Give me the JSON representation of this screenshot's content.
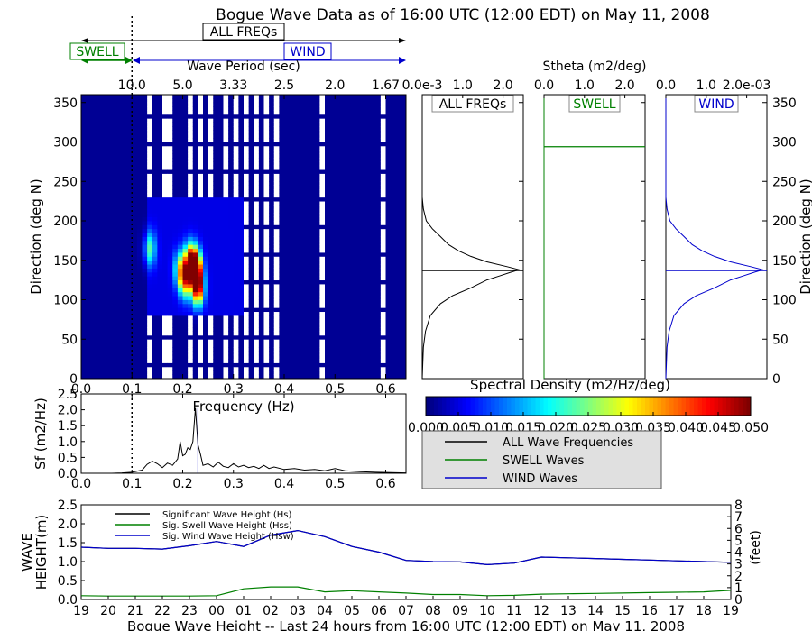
{
  "figure_title": "Bogue Wave Data as of 16:00 UTC (12:00 EDT) on May 11, 2008",
  "bands": {
    "all": "ALL FREQs",
    "swell": "SWELL",
    "wind": "WIND"
  },
  "colors": {
    "all": "#000000",
    "swell": "#008000",
    "wind": "#0000cc",
    "cutoff": "#000000"
  },
  "chart_data": [
    {
      "type": "heatmap",
      "title": "",
      "xlabel": "Frequency (Hz)",
      "x2label": "Wave Period (sec)",
      "ylabel": "Direction (deg N)",
      "xlim": [
        0.0,
        0.64
      ],
      "ylim": [
        0,
        360
      ],
      "x_ticks": [
        "0.0",
        "0.1",
        "0.2",
        "0.3",
        "0.4",
        "0.5",
        "0.6"
      ],
      "x2_ticks": [
        "10.0",
        "5.0",
        "3.33",
        "2.5",
        "2.0",
        "1.67"
      ],
      "x2_tick_freqs": [
        0.1,
        0.2,
        0.3,
        0.4,
        0.5,
        0.6
      ],
      "y_ticks": [
        0,
        50,
        100,
        150,
        200,
        250,
        300,
        350
      ],
      "swell_wind_cutoff_hz": 0.1,
      "background_level": 0.001,
      "gap_columns_hz": [
        0.135,
        0.165,
        0.175,
        0.2,
        0.215,
        0.24,
        0.255,
        0.27,
        0.285,
        0.305,
        0.325,
        0.345,
        0.365,
        0.385,
        0.44,
        0.475,
        0.595
      ],
      "energy_peaks": [
        {
          "f": 0.135,
          "d": 165,
          "level": 0.018
        },
        {
          "f": 0.195,
          "d": 140,
          "level": 0.02
        },
        {
          "f": 0.205,
          "d": 125,
          "level": 0.03
        },
        {
          "f": 0.225,
          "d": 140,
          "level": 0.05
        },
        {
          "f": 0.23,
          "d": 115,
          "level": 0.04
        },
        {
          "f": 0.215,
          "d": 150,
          "level": 0.035
        }
      ]
    },
    {
      "type": "line",
      "title": "",
      "xlabel": "Frequency (Hz)",
      "ylabel": "Sf (m2/Hz)",
      "xlim": [
        0.0,
        0.64
      ],
      "ylim": [
        0.0,
        2.5
      ],
      "y_ticks": [
        "0.0",
        "0.5",
        "1.0",
        "1.5",
        "2.0",
        "2.5"
      ],
      "x_ticks": [
        "0.0",
        "0.1",
        "0.2",
        "0.3",
        "0.4",
        "0.5",
        "0.6"
      ],
      "peak_frequency_hz": 0.23,
      "x": [
        0.0,
        0.02,
        0.04,
        0.06,
        0.08,
        0.1,
        0.12,
        0.13,
        0.14,
        0.15,
        0.16,
        0.17,
        0.18,
        0.19,
        0.195,
        0.2,
        0.205,
        0.21,
        0.215,
        0.22,
        0.225,
        0.23,
        0.235,
        0.24,
        0.25,
        0.26,
        0.27,
        0.28,
        0.29,
        0.3,
        0.31,
        0.32,
        0.33,
        0.34,
        0.35,
        0.36,
        0.37,
        0.38,
        0.4,
        0.42,
        0.44,
        0.46,
        0.48,
        0.5,
        0.52,
        0.55,
        0.58,
        0.61,
        0.64
      ],
      "values": [
        0.0,
        0.0,
        0.0,
        0.0,
        0.01,
        0.03,
        0.1,
        0.28,
        0.38,
        0.3,
        0.18,
        0.32,
        0.25,
        0.45,
        1.0,
        0.55,
        0.6,
        0.8,
        0.75,
        1.0,
        2.05,
        0.9,
        0.6,
        0.25,
        0.3,
        0.2,
        0.35,
        0.22,
        0.18,
        0.3,
        0.2,
        0.25,
        0.18,
        0.22,
        0.15,
        0.25,
        0.15,
        0.2,
        0.12,
        0.15,
        0.1,
        0.12,
        0.08,
        0.15,
        0.08,
        0.05,
        0.03,
        0.02,
        0.01
      ]
    },
    {
      "type": "line",
      "title": "",
      "panel": "ALL FREQs",
      "xlabel": "",
      "ylabel": "",
      "x_ticks": [
        "0.0e-3",
        "1.0",
        "2.0"
      ],
      "xlim": [
        0.0,
        2.5
      ],
      "ylim": [
        0,
        360
      ],
      "mean_direction": 137,
      "y": [
        0,
        40,
        60,
        80,
        95,
        105,
        115,
        125,
        130,
        135,
        138,
        142,
        148,
        155,
        162,
        170,
        180,
        190,
        200,
        215,
        230,
        360
      ],
      "values": [
        0.0,
        0.03,
        0.08,
        0.2,
        0.45,
        0.75,
        1.2,
        1.6,
        1.9,
        2.2,
        2.4,
        2.1,
        1.6,
        1.2,
        0.9,
        0.65,
        0.45,
        0.25,
        0.1,
        0.03,
        0.0,
        0.0
      ]
    },
    {
      "type": "line",
      "title": "",
      "panel": "SWELL",
      "xlabel": "Stheta (m2/deg)",
      "ylabel": "",
      "x_ticks": [
        "0.0",
        "1.0",
        "2.0"
      ],
      "xlim": [
        0.0,
        2.5
      ],
      "ylim": [
        0,
        360
      ],
      "mean_direction": 294,
      "y": [
        0,
        360
      ],
      "values": [
        0.0,
        0.0
      ]
    },
    {
      "type": "line",
      "title": "",
      "panel": "WIND",
      "xlabel": "",
      "ylabel": "Direction (deg N)",
      "x_ticks": [
        "0.0",
        "1.0",
        "2.0e-03"
      ],
      "xlim": [
        0.0,
        2.5
      ],
      "ylim": [
        0,
        360
      ],
      "y_ticks": [
        0,
        50,
        100,
        150,
        200,
        250,
        300,
        350
      ],
      "mean_direction": 137,
      "y": [
        0,
        40,
        60,
        80,
        95,
        105,
        115,
        125,
        130,
        135,
        138,
        142,
        148,
        155,
        162,
        170,
        180,
        190,
        200,
        215,
        230,
        360
      ],
      "values": [
        0.0,
        0.03,
        0.08,
        0.2,
        0.45,
        0.75,
        1.2,
        1.6,
        1.9,
        2.2,
        2.4,
        2.1,
        1.6,
        1.2,
        0.9,
        0.65,
        0.45,
        0.25,
        0.1,
        0.03,
        0.0,
        0.0
      ]
    },
    {
      "type": "heatmap",
      "role": "colorbar",
      "title": "Spectral Density (m2/Hz/deg)",
      "range": [
        0.0,
        0.05
      ],
      "tick_values": [
        0.0,
        0.005,
        0.01,
        0.015,
        0.02,
        0.025,
        0.03,
        0.035,
        0.04,
        0.045,
        0.05
      ],
      "tick_labels": [
        "0.000",
        "0.005",
        "0.010",
        "0.015",
        "0.020",
        "0.025",
        "0.030",
        "0.035",
        "0.040",
        "0.045",
        "0.050"
      ],
      "colormap": "jet"
    },
    {
      "type": "line",
      "title": "",
      "xlabel": "Bogue Wave Height -- Last 24 hours from 16:00 UTC (12:00 EDT) on May 11, 2008",
      "ylabel": "WAVE HEIGHT(m)",
      "y2label": "(feet)",
      "ylim": [
        0.0,
        2.5
      ],
      "y2lim": [
        0,
        8
      ],
      "y_ticks": [
        "0.0",
        "0.5",
        "1.0",
        "1.5",
        "2.0",
        "2.5"
      ],
      "y2_ticks": [
        "0",
        "1",
        "2",
        "3",
        "4",
        "5",
        "6",
        "7",
        "8"
      ],
      "categories": [
        "19",
        "20",
        "21",
        "22",
        "23",
        "00",
        "01",
        "02",
        "03",
        "04",
        "05",
        "06",
        "07",
        "08",
        "09",
        "10",
        "11",
        "12",
        "13",
        "14",
        "15",
        "16",
        "17",
        "18",
        "19"
      ],
      "series": [
        {
          "name": "Significant Wave Height (Hs)",
          "key": "all",
          "values": [
            1.38,
            1.35,
            1.35,
            1.33,
            1.42,
            1.53,
            1.4,
            1.7,
            1.82,
            1.66,
            1.4,
            1.25,
            1.03,
            1.0,
            0.99,
            0.92,
            0.96,
            1.12,
            1.1,
            1.08,
            1.06,
            1.04,
            1.02,
            1.0,
            0.98
          ]
        },
        {
          "name": "Sig. Swell Wave Height (Hss)",
          "key": "swell",
          "values": [
            0.1,
            0.09,
            0.09,
            0.09,
            0.09,
            0.1,
            0.28,
            0.33,
            0.33,
            0.2,
            0.23,
            0.2,
            0.17,
            0.13,
            0.13,
            0.1,
            0.11,
            0.14,
            0.15,
            0.16,
            0.17,
            0.18,
            0.19,
            0.2,
            0.24
          ]
        },
        {
          "name": "Sig. Wind Wave Height (Hsw)",
          "key": "wind",
          "values": [
            1.38,
            1.35,
            1.35,
            1.33,
            1.42,
            1.53,
            1.4,
            1.7,
            1.82,
            1.66,
            1.4,
            1.25,
            1.03,
            1.0,
            0.99,
            0.92,
            0.96,
            1.12,
            1.1,
            1.08,
            1.06,
            1.04,
            1.02,
            1.0,
            0.98
          ]
        }
      ],
      "legend_position": "upper-left"
    }
  ],
  "spectrum_legend": [
    {
      "label": "ALL Wave Frequencies",
      "key": "all"
    },
    {
      "label": "SWELL Waves",
      "key": "swell"
    },
    {
      "label": "WIND Waves",
      "key": "wind"
    }
  ]
}
